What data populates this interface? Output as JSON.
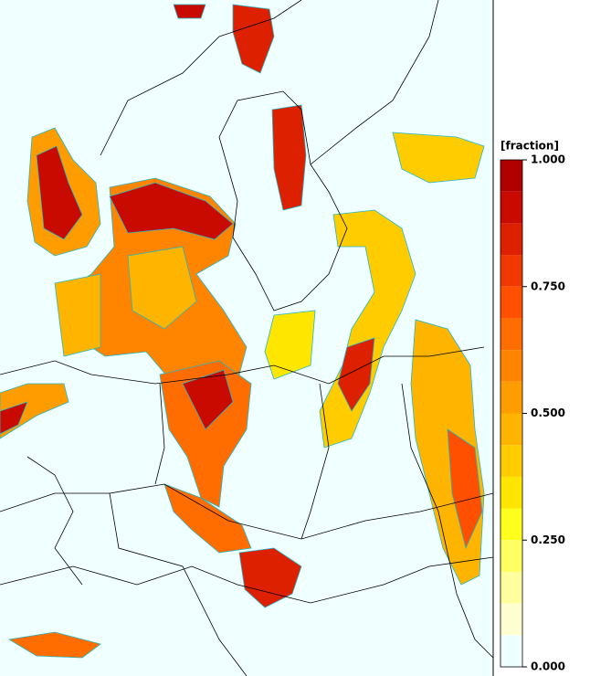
{
  "colorbar": {
    "title": "[fraction]",
    "range": [
      0,
      1
    ],
    "colors": [
      "#f0ffff",
      "#ffffd2",
      "#ffffa0",
      "#ffff64",
      "#ffff1e",
      "#ffe600",
      "#ffcc00",
      "#ffb400",
      "#ff9c00",
      "#ff8400",
      "#ff6c00",
      "#ff5000",
      "#f03800",
      "#dc2000",
      "#c80a00",
      "#b00000"
    ],
    "ticks": [
      {
        "value": 1,
        "label": "1.000"
      },
      {
        "value": 0.75,
        "label": "0.750"
      },
      {
        "value": 0.5,
        "label": "0.500"
      },
      {
        "value": 0.25,
        "label": "0.250"
      },
      {
        "value": 0,
        "label": "0.000"
      }
    ]
  }
}
